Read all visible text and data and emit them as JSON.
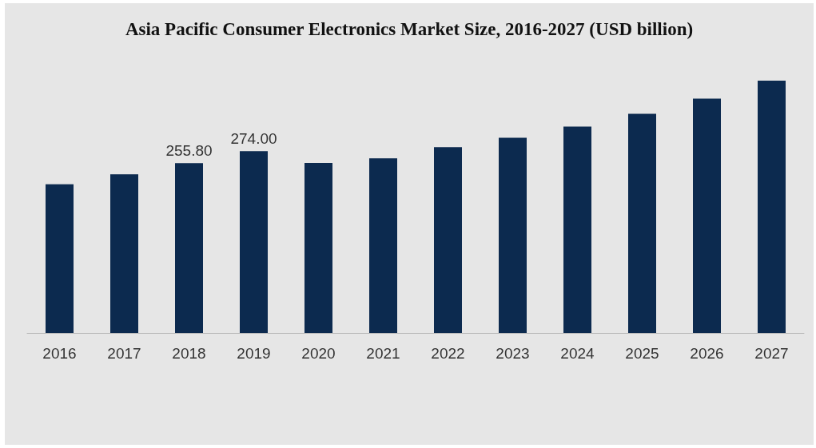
{
  "chart_data": {
    "type": "bar",
    "title": "Asia Pacific Consumer Electronics Market Size, 2016-2027 (USD billion)",
    "categories": [
      "2016",
      "2017",
      "2018",
      "2019",
      "2020",
      "2021",
      "2022",
      "2023",
      "2024",
      "2025",
      "2026",
      "2027"
    ],
    "values": [
      224,
      239,
      255.8,
      274,
      256,
      263,
      280,
      294,
      311,
      330,
      353,
      380
    ],
    "value_labels": [
      null,
      null,
      "255.80",
      "274.00",
      null,
      null,
      null,
      null,
      null,
      null,
      null,
      null
    ],
    "color": "#0c2a4f"
  }
}
